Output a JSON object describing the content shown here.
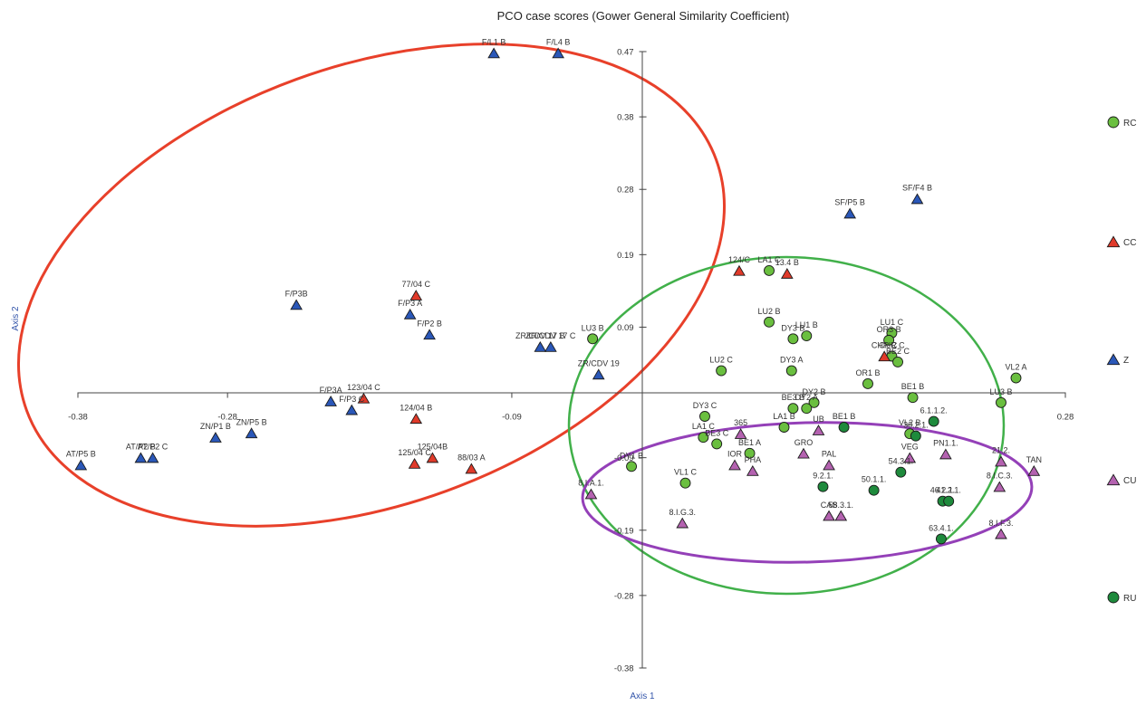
{
  "chart_data": {
    "type": "scatter",
    "title": "PCO case scores (Gower General Similarity Coefficient)",
    "xlabel": "Axis 1",
    "ylabel": "Axis 2",
    "xlim": [
      -0.38,
      0.28
    ],
    "ylim": [
      -0.38,
      0.47
    ],
    "x_ticks": [
      -0.38,
      -0.28,
      -0.09,
      0.28
    ],
    "x_tick_labels": [
      "-0.38",
      "-0.28",
      "-0.09",
      "0.28"
    ],
    "y_ticks": [
      0.47,
      0.38,
      0.28,
      0.19,
      0.09,
      -0.09,
      -0.19,
      -0.28,
      -0.38
    ],
    "y_tick_labels": [
      "0.47",
      "0.38",
      "0.28",
      "0.19",
      "0.09",
      "-0.09",
      "-0.19",
      "-0.28",
      "-0.38"
    ],
    "legend_placement": "right",
    "colors": {
      "RC": "#6abf3f",
      "CC": "#e03a2a",
      "Z": "#2a57b8",
      "CU": "#b462b0",
      "RU": "#1e8a3c",
      "ellipse_red": "#e8402a",
      "ellipse_green": "#41b04a",
      "ellipse_purple": "#9440b8"
    },
    "series": [
      {
        "name": "RC",
        "marker": "circle",
        "points": [
          {
            "x": 0.082,
            "y": 0.168,
            "label": "LA1 C"
          },
          {
            "x": 0.082,
            "y": 0.097,
            "label": "LU2 B"
          },
          {
            "x": 0.107,
            "y": 0.078,
            "label": "LU1 B"
          },
          {
            "x": 0.098,
            "y": 0.074,
            "label": "DY3 B"
          },
          {
            "x": 0.164,
            "y": 0.082,
            "label": "LU1 C"
          },
          {
            "x": 0.162,
            "y": 0.072,
            "label": "OR3 B"
          },
          {
            "x": 0.164,
            "y": 0.05,
            "label": "CHR C"
          },
          {
            "x": 0.168,
            "y": 0.042,
            "label": "BE2 C"
          },
          {
            "x": -0.036,
            "y": 0.074,
            "label": "LU3 B"
          },
          {
            "x": 0.05,
            "y": 0.03,
            "label": "LU2 C"
          },
          {
            "x": 0.097,
            "y": 0.03,
            "label": "DY3 A"
          },
          {
            "x": 0.148,
            "y": 0.012,
            "label": "OR1 B"
          },
          {
            "x": 0.247,
            "y": 0.02,
            "label": "VL2 A"
          },
          {
            "x": 0.178,
            "y": -0.007,
            "label": "BE1 B"
          },
          {
            "x": 0.237,
            "y": -0.014,
            "label": "LU3 B"
          },
          {
            "x": 0.039,
            "y": -0.033,
            "label": "DY3 C"
          },
          {
            "x": 0.112,
            "y": -0.014,
            "label": "DY2 B"
          },
          {
            "x": 0.107,
            "y": -0.022,
            "label": "DY2 A"
          },
          {
            "x": 0.098,
            "y": -0.022,
            "label": "BE3 B"
          },
          {
            "x": 0.092,
            "y": -0.048,
            "label": "LA1 B"
          },
          {
            "x": 0.038,
            "y": -0.062,
            "label": "LA1 C"
          },
          {
            "x": 0.047,
            "y": -0.071,
            "label": "BE3 C"
          },
          {
            "x": 0.069,
            "y": -0.084,
            "label": "BE1 A"
          },
          {
            "x": -0.01,
            "y": -0.102,
            "label": "DY1 B"
          },
          {
            "x": 0.026,
            "y": -0.125,
            "label": "VL1 C"
          },
          {
            "x": 0.176,
            "y": -0.057,
            "label": "VL2 B"
          }
        ]
      },
      {
        "name": "CC",
        "marker": "triangle",
        "points": [
          {
            "x": 0.062,
            "y": 0.168,
            "label": "124/C"
          },
          {
            "x": 0.094,
            "y": 0.164,
            "label": "13.4 B"
          },
          {
            "x": -0.154,
            "y": 0.134,
            "label": "77/04 C"
          },
          {
            "x": -0.189,
            "y": -0.008,
            "label": "123/04 C"
          },
          {
            "x": -0.154,
            "y": -0.036,
            "label": "124/04 B"
          },
          {
            "x": -0.143,
            "y": -0.09,
            "label": "125/04B"
          },
          {
            "x": -0.155,
            "y": -0.098,
            "label": "125/04 C"
          },
          {
            "x": -0.117,
            "y": -0.105,
            "label": "88/03 A"
          },
          {
            "x": 0.159,
            "y": 0.05,
            "label": "CHR C"
          }
        ]
      },
      {
        "name": "Z",
        "marker": "triangle",
        "points": [
          {
            "x": -0.102,
            "y": 0.468,
            "label": "F/L1 B"
          },
          {
            "x": -0.059,
            "y": 0.468,
            "label": "F/L4 B"
          },
          {
            "x": 0.136,
            "y": 0.247,
            "label": "SF/P5 B"
          },
          {
            "x": 0.181,
            "y": 0.267,
            "label": "SF/F4 B"
          },
          {
            "x": -0.234,
            "y": 0.121,
            "label": "F/P3B"
          },
          {
            "x": -0.158,
            "y": 0.108,
            "label": "F/P3 A"
          },
          {
            "x": -0.145,
            "y": 0.08,
            "label": "F/P2 B"
          },
          {
            "x": -0.071,
            "y": 0.063,
            "label": "ZR/CDV 17 B"
          },
          {
            "x": -0.064,
            "y": 0.063,
            "label": "ZR/CDV 17 C"
          },
          {
            "x": -0.032,
            "y": 0.025,
            "label": "ZR/CDV 19"
          },
          {
            "x": -0.211,
            "y": -0.012,
            "label": "F/P3A"
          },
          {
            "x": -0.197,
            "y": -0.024,
            "label": "F/P3 C"
          },
          {
            "x": -0.288,
            "y": -0.062,
            "label": "ZN/P1 B"
          },
          {
            "x": -0.264,
            "y": -0.056,
            "label": "ZN/P5 B"
          },
          {
            "x": -0.338,
            "y": -0.09,
            "label": "AT/P2 B"
          },
          {
            "x": -0.33,
            "y": -0.09,
            "label": "AT/P2 C"
          },
          {
            "x": -0.378,
            "y": -0.1,
            "label": "AT/P5 B"
          }
        ]
      },
      {
        "name": "CU",
        "marker": "triangle",
        "points": [
          {
            "x": 0.063,
            "y": -0.057,
            "label": "365"
          },
          {
            "x": 0.059,
            "y": -0.1,
            "label": "IOR"
          },
          {
            "x": 0.071,
            "y": -0.108,
            "label": "PHA"
          },
          {
            "x": 0.105,
            "y": -0.084,
            "label": "GRO"
          },
          {
            "x": 0.115,
            "y": -0.052,
            "label": "UB"
          },
          {
            "x": 0.122,
            "y": -0.1,
            "label": "PAL"
          },
          {
            "x": -0.037,
            "y": -0.14,
            "label": "8.I.A.1."
          },
          {
            "x": 0.024,
            "y": -0.18,
            "label": "8.I.G.3."
          },
          {
            "x": 0.122,
            "y": -0.17,
            "label": "CAS"
          },
          {
            "x": 0.13,
            "y": -0.17,
            "label": "58.3.1."
          },
          {
            "x": 0.176,
            "y": -0.09,
            "label": "VEG"
          },
          {
            "x": 0.2,
            "y": -0.085,
            "label": "PN1.1."
          },
          {
            "x": 0.237,
            "y": -0.095,
            "label": "21.2."
          },
          {
            "x": 0.259,
            "y": -0.108,
            "label": "TAN"
          },
          {
            "x": 0.236,
            "y": -0.13,
            "label": "8.I.C.3."
          },
          {
            "x": 0.237,
            "y": -0.195,
            "label": "8.I.F.3."
          }
        ]
      },
      {
        "name": "RU",
        "marker": "circle",
        "points": [
          {
            "x": 0.132,
            "y": -0.048,
            "label": "BE1 B"
          },
          {
            "x": 0.118,
            "y": -0.13,
            "label": "9.2.1."
          },
          {
            "x": 0.152,
            "y": -0.135,
            "label": "50.1.1."
          },
          {
            "x": 0.17,
            "y": -0.11,
            "label": "54.3.1."
          },
          {
            "x": 0.198,
            "y": -0.15,
            "label": "46.2.1."
          },
          {
            "x": 0.202,
            "y": -0.15,
            "label": "41.2.1."
          },
          {
            "x": 0.197,
            "y": -0.202,
            "label": "63.4.1."
          },
          {
            "x": 0.192,
            "y": -0.04,
            "label": "6.1.1.2."
          },
          {
            "x": 0.18,
            "y": -0.06,
            "label": "30.2.1."
          }
        ]
      }
    ]
  }
}
